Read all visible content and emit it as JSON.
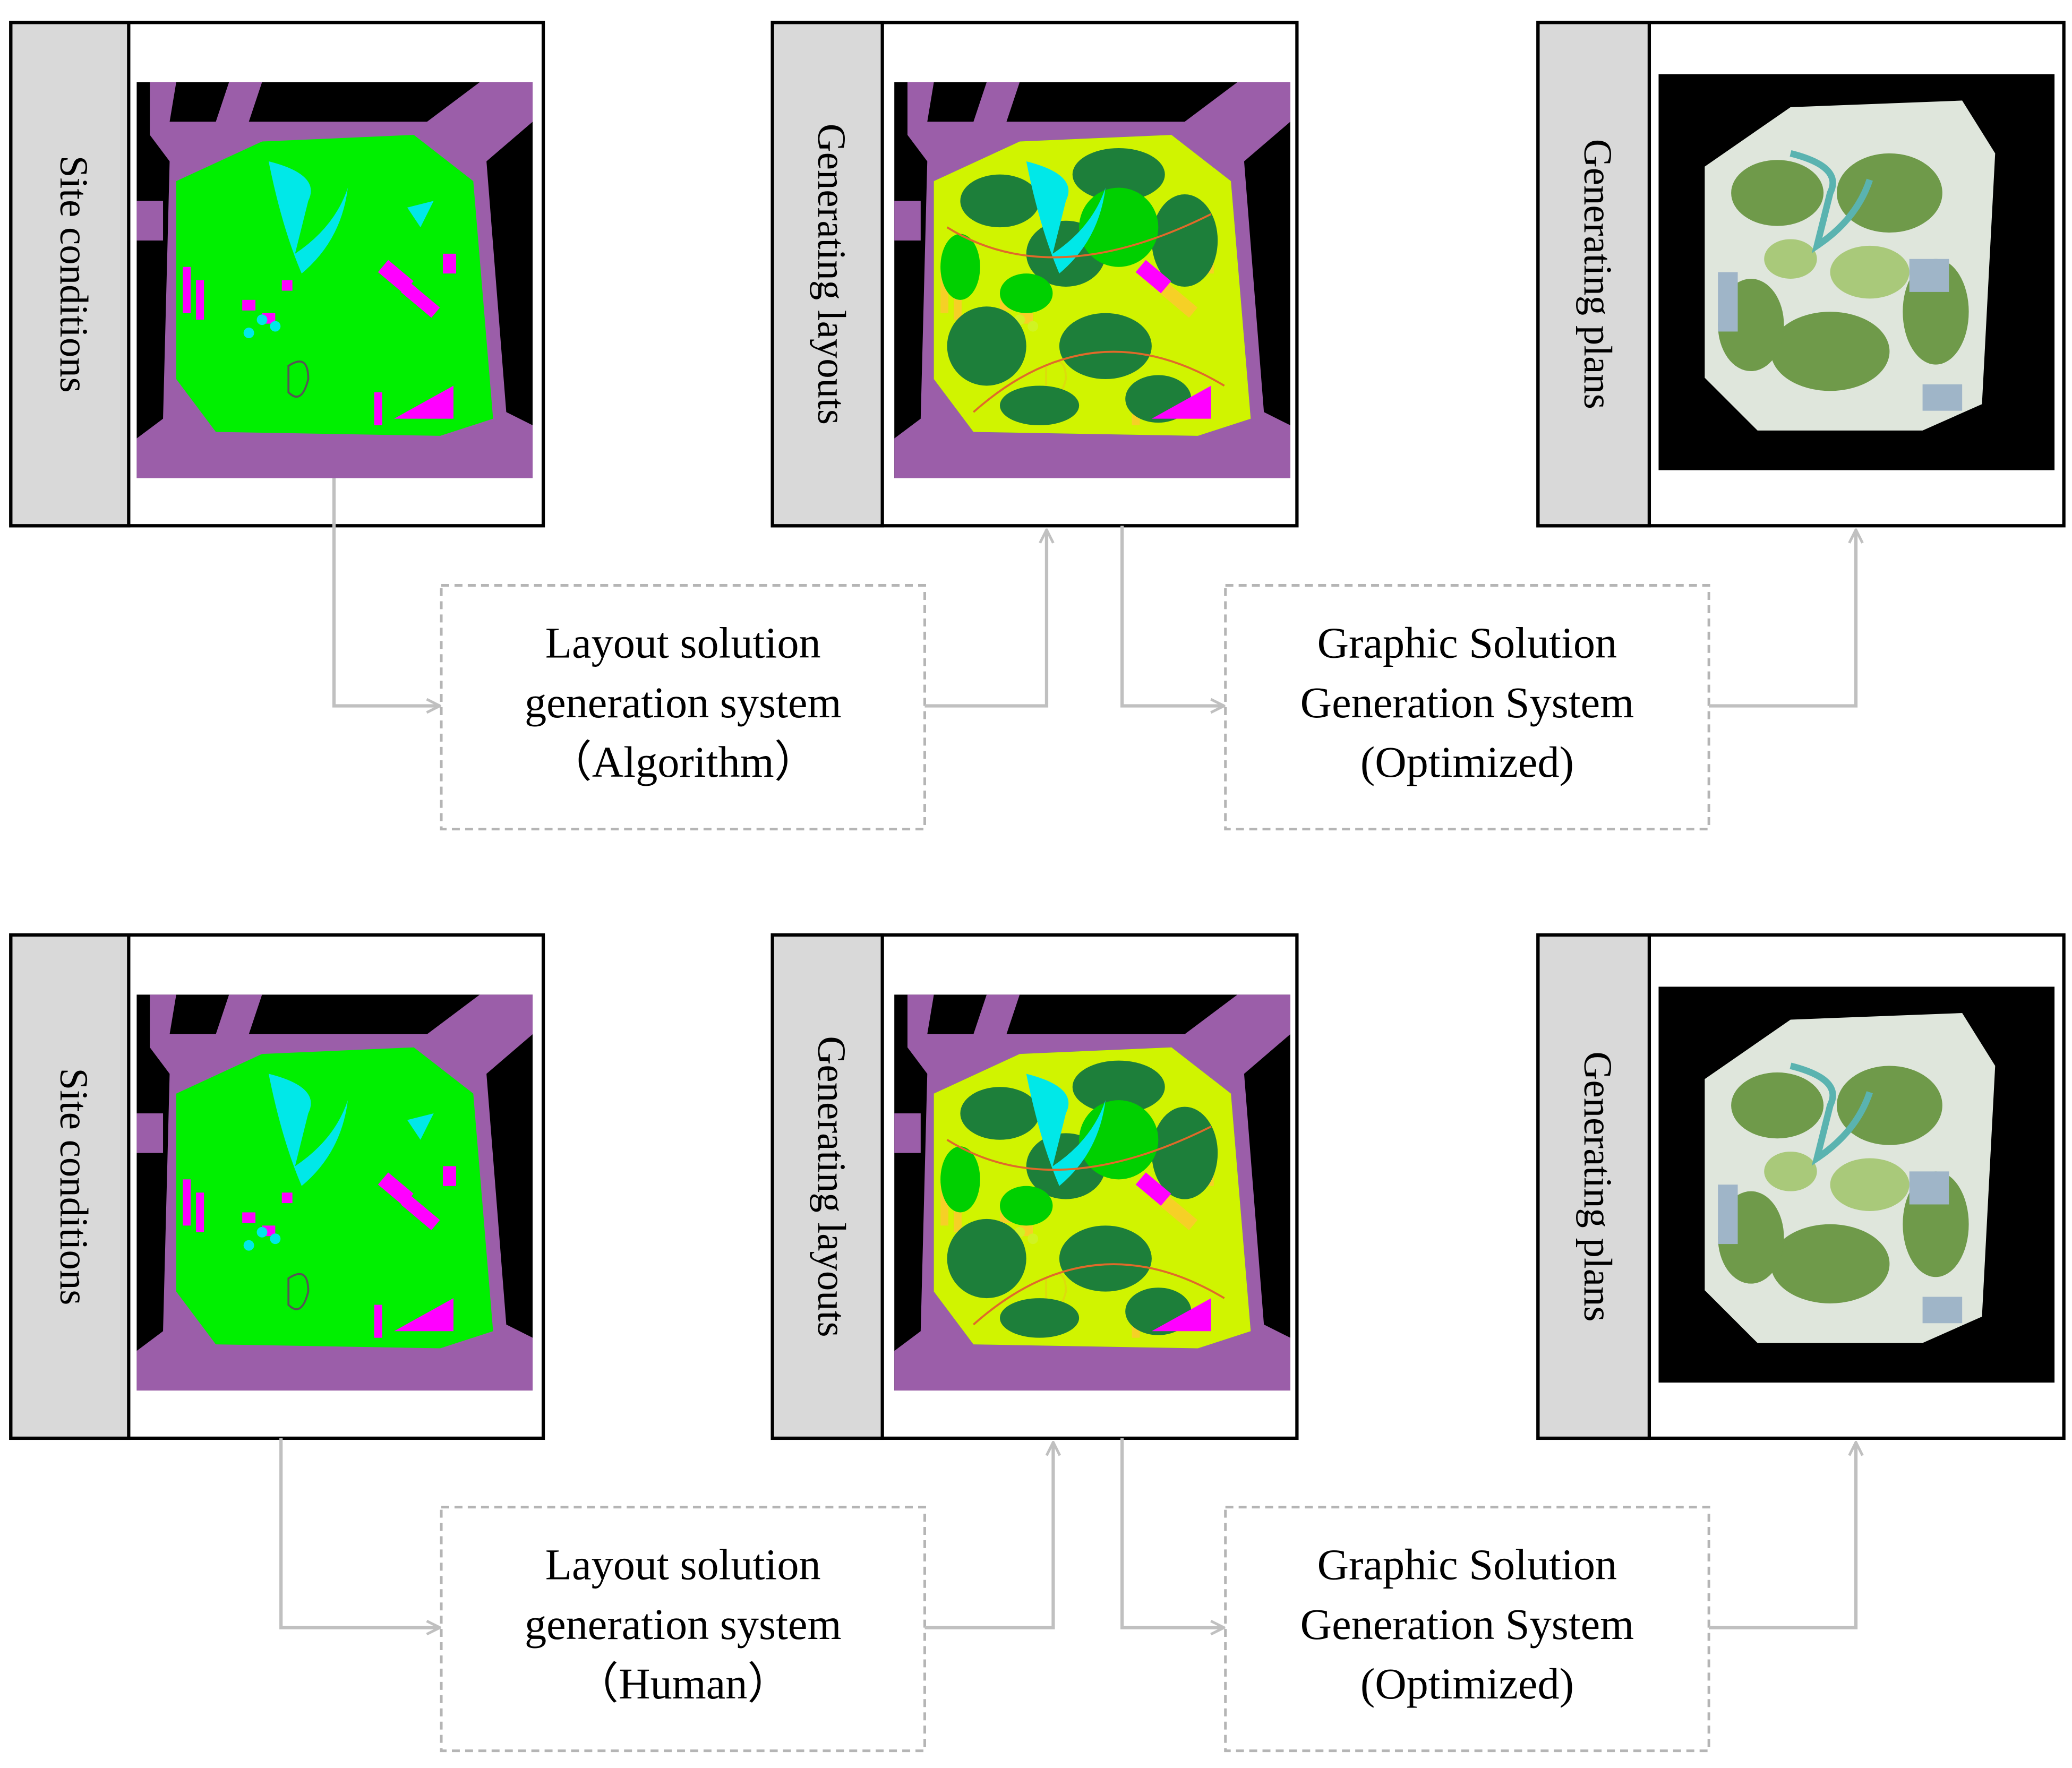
{
  "rows": [
    {
      "panels": [
        "Site conditions",
        "Generating layouts",
        "Generating plans"
      ],
      "systems": [
        {
          "lines": [
            "Layout solution",
            "generation system",
            "（Algorithm）"
          ]
        },
        {
          "lines": [
            "Graphic Solution",
            "Generation System",
            "(Optimized)"
          ]
        }
      ]
    },
    {
      "panels": [
        "Site conditions",
        "Generating layouts",
        "Generating plans"
      ],
      "systems": [
        {
          "lines": [
            "Layout solution",
            "generation system",
            "（Human）"
          ]
        },
        {
          "lines": [
            "Graphic Solution",
            "Generation System",
            "(Optimized)"
          ]
        }
      ]
    }
  ]
}
